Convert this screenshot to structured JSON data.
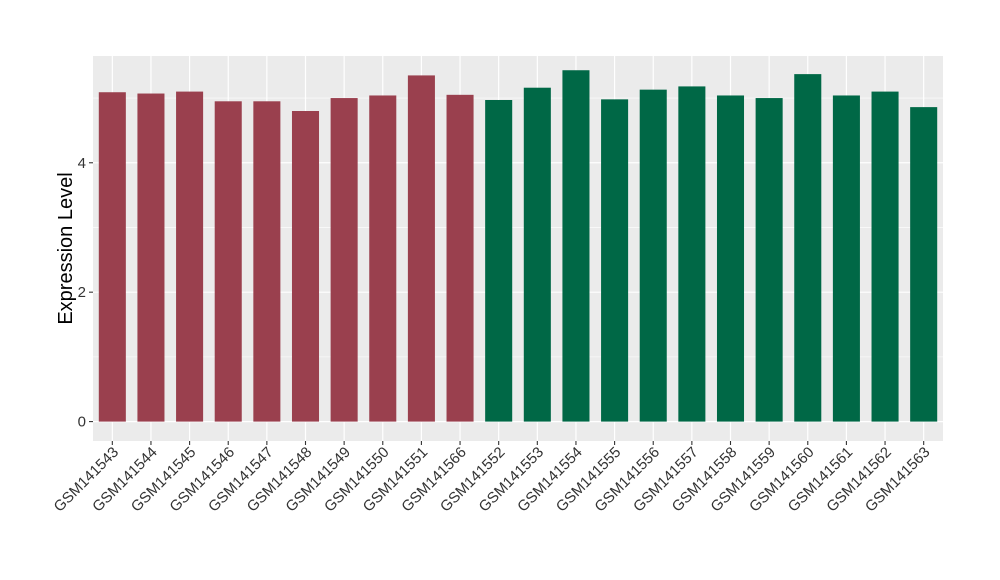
{
  "chart_data": {
    "type": "bar",
    "xlabel": "",
    "ylabel": "Expression Level",
    "ylim": [
      -0.3,
      5.65
    ],
    "yticks": [
      0,
      2,
      4
    ],
    "grid": true,
    "legend": "none",
    "categories": [
      "GSM141543",
      "GSM141544",
      "GSM141545",
      "GSM141546",
      "GSM141547",
      "GSM141548",
      "GSM141549",
      "GSM141550",
      "GSM141551",
      "GSM141566",
      "GSM141552",
      "GSM141553",
      "GSM141554",
      "GSM141555",
      "GSM141556",
      "GSM141557",
      "GSM141558",
      "GSM141559",
      "GSM141560",
      "GSM141561",
      "GSM141562",
      "GSM141563"
    ],
    "values": [
      5.09,
      5.07,
      5.1,
      4.95,
      4.95,
      4.8,
      5.0,
      5.04,
      5.35,
      5.05,
      4.97,
      5.16,
      5.43,
      4.98,
      5.13,
      5.18,
      5.04,
      5.0,
      5.37,
      5.04,
      5.1,
      4.86
    ],
    "groups": [
      0,
      0,
      0,
      0,
      0,
      0,
      0,
      0,
      0,
      0,
      1,
      1,
      1,
      1,
      1,
      1,
      1,
      1,
      1,
      1,
      1,
      1
    ],
    "colors": [
      "#9a404e",
      "#006846"
    ],
    "panel_background": "#ebebeb",
    "grid_color": "#ffffff"
  }
}
